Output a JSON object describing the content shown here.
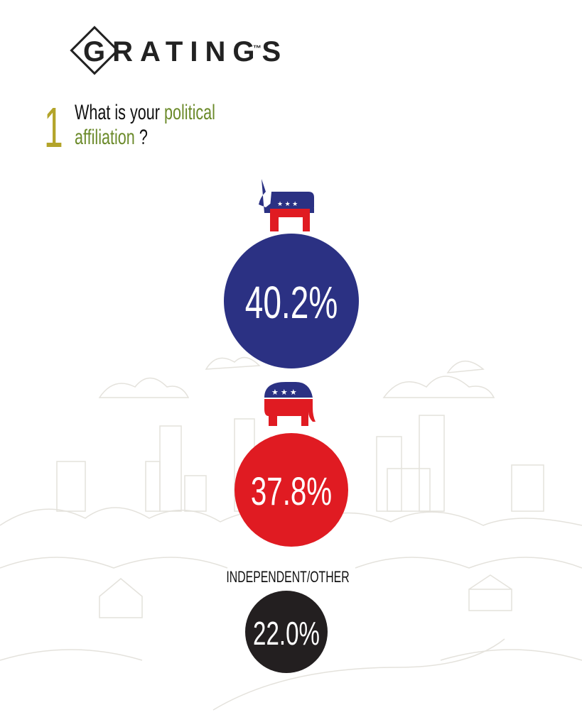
{
  "logo": {
    "name": "GRATINGS",
    "mark": "™"
  },
  "question": {
    "number": "1",
    "parts": [
      "What is your",
      "political",
      "affiliation",
      "?"
    ]
  },
  "results": [
    {
      "value_label": "40.2%"
    },
    {
      "value_label": "37.8%"
    },
    {
      "label": "INDEPENDENT/OTHER",
      "value_label": "22.0%"
    }
  ]
}
